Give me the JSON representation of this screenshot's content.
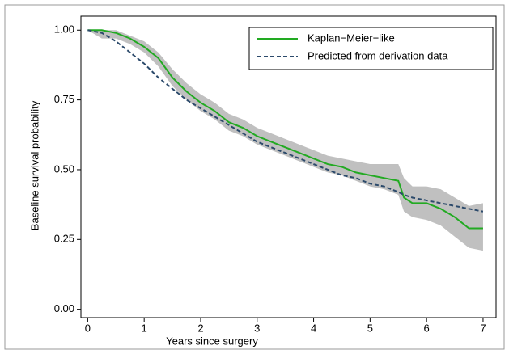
{
  "chart_data": {
    "type": "line",
    "x_label": "Years since surgery",
    "y_label": "Baseline survival probability",
    "x": [
      0,
      0.25,
      0.5,
      0.75,
      1.0,
      1.25,
      1.5,
      1.75,
      2.0,
      2.25,
      2.5,
      2.75,
      3.0,
      3.25,
      3.5,
      3.75,
      4.0,
      4.25,
      4.5,
      4.75,
      5.0,
      5.25,
      5.5,
      5.6,
      5.75,
      6.0,
      6.25,
      6.5,
      6.75,
      7.0
    ],
    "ci_upper": [
      1.0,
      1.0,
      1.0,
      0.98,
      0.96,
      0.92,
      0.86,
      0.81,
      0.77,
      0.74,
      0.7,
      0.68,
      0.65,
      0.63,
      0.61,
      0.59,
      0.57,
      0.55,
      0.54,
      0.53,
      0.52,
      0.52,
      0.52,
      0.47,
      0.44,
      0.44,
      0.43,
      0.4,
      0.37,
      0.38
    ],
    "ci_lower": [
      1.0,
      0.97,
      0.97,
      0.95,
      0.92,
      0.87,
      0.8,
      0.75,
      0.71,
      0.68,
      0.64,
      0.62,
      0.59,
      0.57,
      0.55,
      0.53,
      0.51,
      0.49,
      0.48,
      0.46,
      0.44,
      0.43,
      0.41,
      0.35,
      0.33,
      0.32,
      0.3,
      0.26,
      0.22,
      0.21
    ],
    "ci_color": "#c0c0c0",
    "series": [
      {
        "name": "Kaplan−Meier−like",
        "color": "#22aa22",
        "dash": false,
        "values": [
          1.0,
          1.0,
          0.99,
          0.97,
          0.94,
          0.9,
          0.83,
          0.78,
          0.74,
          0.71,
          0.67,
          0.65,
          0.62,
          0.6,
          0.58,
          0.56,
          0.54,
          0.52,
          0.51,
          0.49,
          0.48,
          0.47,
          0.46,
          0.4,
          0.38,
          0.38,
          0.36,
          0.33,
          0.29,
          0.29
        ]
      },
      {
        "name": "Predicted from derivation data",
        "color": "#2c4a6b",
        "dash": true,
        "values": [
          1.0,
          0.99,
          0.96,
          0.92,
          0.88,
          0.83,
          0.79,
          0.75,
          0.72,
          0.69,
          0.66,
          0.63,
          0.6,
          0.58,
          0.56,
          0.54,
          0.52,
          0.5,
          0.48,
          0.47,
          0.45,
          0.44,
          0.42,
          0.41,
          0.4,
          0.39,
          0.38,
          0.37,
          0.36,
          0.35
        ]
      }
    ],
    "xlim": [
      -0.12,
      7.23
    ],
    "ylim": [
      -0.03,
      1.05
    ],
    "xticks": [
      0,
      1,
      2,
      3,
      4,
      5,
      6,
      7
    ],
    "yticks": [
      {
        "value": 0,
        "label": "0.00"
      },
      {
        "value": 0.25,
        "label": "0.25"
      },
      {
        "value": 0.5,
        "label": "0.50"
      },
      {
        "value": 0.75,
        "label": "0.75"
      },
      {
        "value": 1,
        "label": "1.00"
      }
    ],
    "legend": "top-right"
  }
}
